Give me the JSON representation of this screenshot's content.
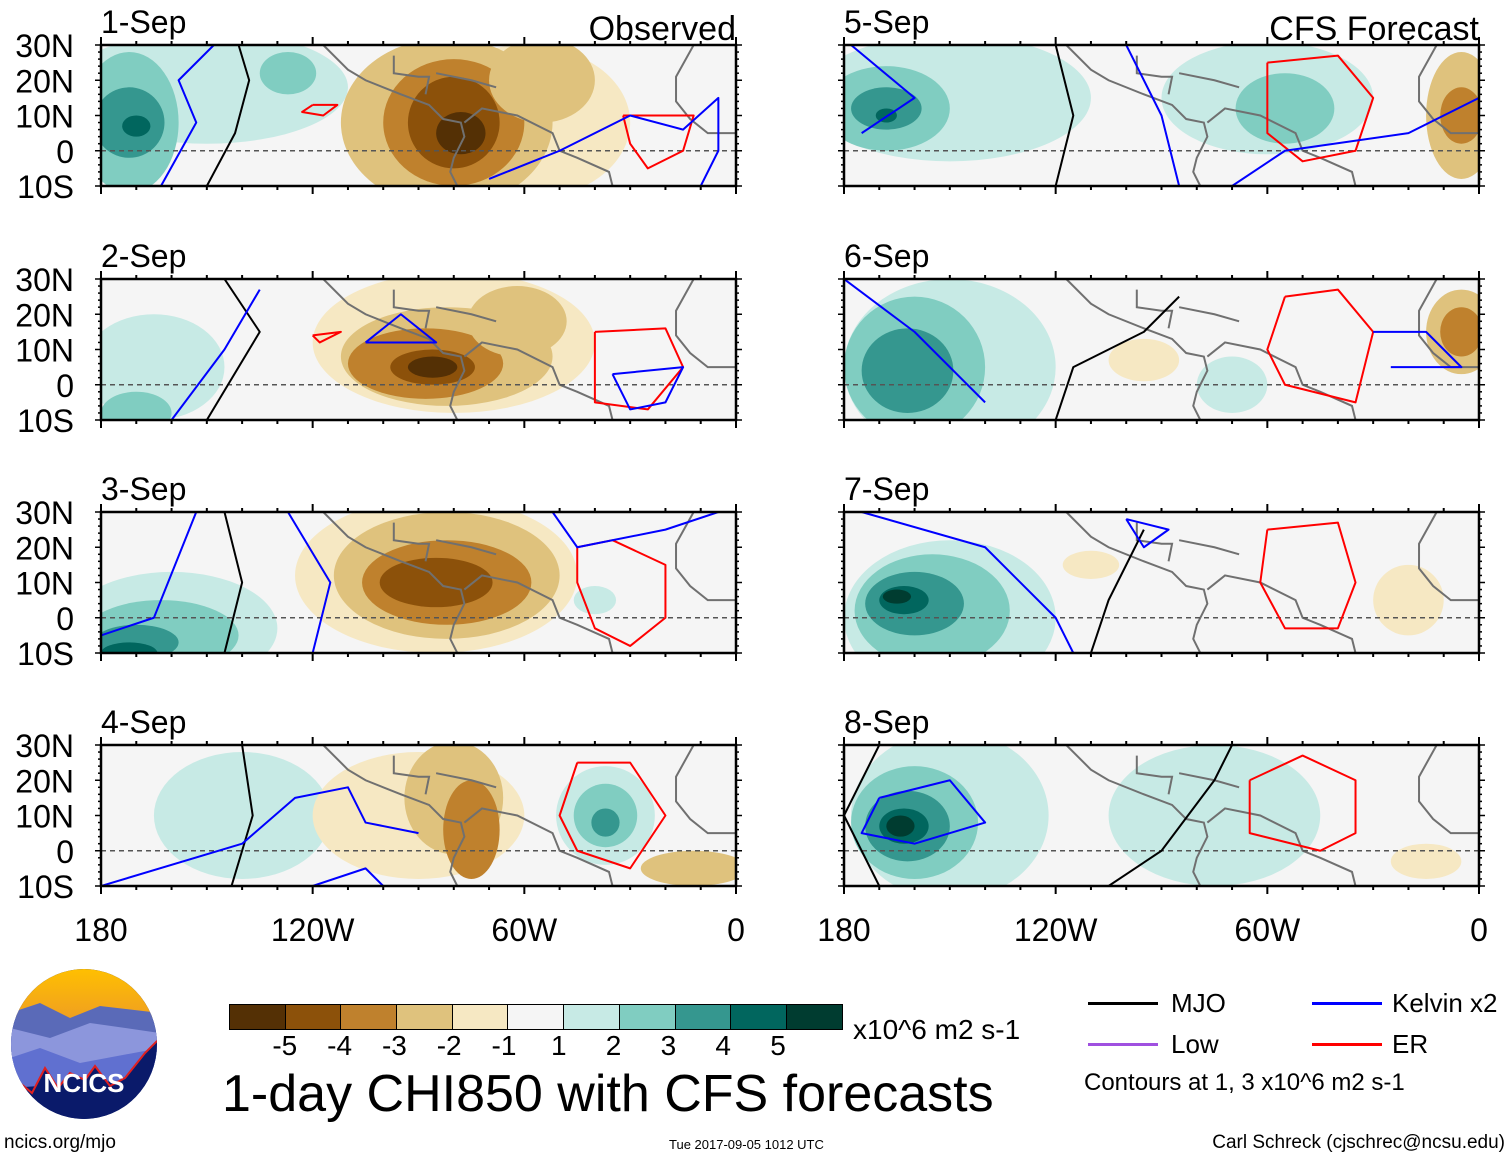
{
  "chart_data": {
    "type": "heatmap",
    "title": "1-day CHI850 with CFS forecasts",
    "columns": [
      {
        "title": "Observed",
        "panels": [
          "1-Sep",
          "2-Sep",
          "3-Sep",
          "4-Sep"
        ]
      },
      {
        "title": "CFS Forecast",
        "panels": [
          "5-Sep",
          "6-Sep",
          "7-Sep",
          "8-Sep"
        ]
      }
    ],
    "ylabels": [
      "30N",
      "20N",
      "10N",
      "0",
      "10S"
    ],
    "ylim": [
      -10,
      30
    ],
    "xlabels": [
      "180",
      "120W",
      "60W",
      "0"
    ],
    "xlim": [
      -180,
      0
    ],
    "colorbar": {
      "ticks": [
        "-5",
        "-4",
        "-3",
        "-2",
        "-1",
        "1",
        "2",
        "3",
        "4",
        "5"
      ],
      "colors": [
        "#543005",
        "#8c510a",
        "#bf812d",
        "#dfc27d",
        "#f6e8c3",
        "#f5f5f5",
        "#c7eae5",
        "#80cdc1",
        "#35978f",
        "#01665e",
        "#003c30"
      ],
      "units": "x10^6 m2 s-1"
    },
    "legend": [
      {
        "label": "MJO",
        "color": "#000000"
      },
      {
        "label": "Kelvin x2",
        "color": "#0000ff"
      },
      {
        "label": "Low",
        "color": "#a050e0"
      },
      {
        "label": "ER",
        "color": "#ff0000"
      }
    ],
    "contours_note": "Contours at 1, 3 x10^6 m2 s-1"
  },
  "footer": {
    "logo": "NCICS",
    "url": "ncics.org/mjo",
    "timestamp": "Tue 2017-09-05 1012 UTC",
    "author": "Carl Schreck (cjschrec@ncsu.edu)"
  }
}
